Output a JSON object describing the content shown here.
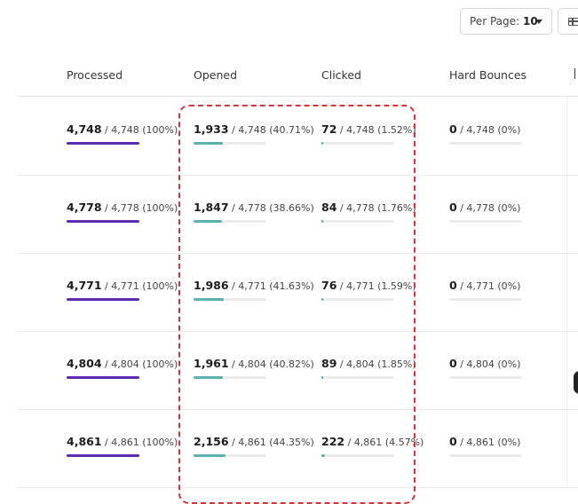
{
  "toolbar": {
    "per_page_label": "Per Page:",
    "per_page_value": "10",
    "columns_icon": "table-columns-icon"
  },
  "columns": [
    "Processed",
    "Opened",
    "Clicked",
    "Hard Bounces"
  ],
  "rows": [
    {
      "processed": {
        "value": "4,748",
        "rest": " / 4,748 (100%)",
        "fraction": 1.0
      },
      "opened": {
        "value": "1,933",
        "rest": " / 4,748 (40.71%)",
        "fraction": 0.4071
      },
      "clicked": {
        "value": "72",
        "rest": " / 4,748 (1.52%)",
        "fraction": 0.0152
      },
      "hard_bounces": {
        "value": "0",
        "rest": " / 4,748 (0%)",
        "fraction": 0
      }
    },
    {
      "processed": {
        "value": "4,778",
        "rest": " / 4,778 (100%)",
        "fraction": 1.0
      },
      "opened": {
        "value": "1,847",
        "rest": " / 4,778 (38.66%)",
        "fraction": 0.3866
      },
      "clicked": {
        "value": "84",
        "rest": " / 4,778 (1.76%)",
        "fraction": 0.0176
      },
      "hard_bounces": {
        "value": "0",
        "rest": " / 4,778 (0%)",
        "fraction": 0
      }
    },
    {
      "processed": {
        "value": "4,771",
        "rest": " / 4,771 (100%)",
        "fraction": 1.0
      },
      "opened": {
        "value": "1,986",
        "rest": " / 4,771 (41.63%)",
        "fraction": 0.4163
      },
      "clicked": {
        "value": "76",
        "rest": " / 4,771 (1.59%)",
        "fraction": 0.0159
      },
      "hard_bounces": {
        "value": "0",
        "rest": " / 4,771 (0%)",
        "fraction": 0
      }
    },
    {
      "processed": {
        "value": "4,804",
        "rest": " / 4,804 (100%)",
        "fraction": 1.0
      },
      "opened": {
        "value": "1,961",
        "rest": " / 4,804 (40.82%)",
        "fraction": 0.4082
      },
      "clicked": {
        "value": "89",
        "rest": " / 4,804 (1.85%)",
        "fraction": 0.0185
      },
      "hard_bounces": {
        "value": "0",
        "rest": " / 4,804 (0%)",
        "fraction": 0
      }
    },
    {
      "processed": {
        "value": "4,861",
        "rest": " / 4,861 (100%)",
        "fraction": 1.0
      },
      "opened": {
        "value": "2,156",
        "rest": " / 4,861 (44.35%)",
        "fraction": 0.4435
      },
      "clicked": {
        "value": "222",
        "rest": " / 4,861 (4.57%)",
        "fraction": 0.0457
      },
      "hard_bounces": {
        "value": "0",
        "rest": " / 4,861 (0%)",
        "fraction": 0
      }
    }
  ],
  "colors": {
    "processed_bar": "#5b2bb0",
    "rate_bar": "#5ab0ad",
    "highlight_outline": "#d9333a"
  }
}
